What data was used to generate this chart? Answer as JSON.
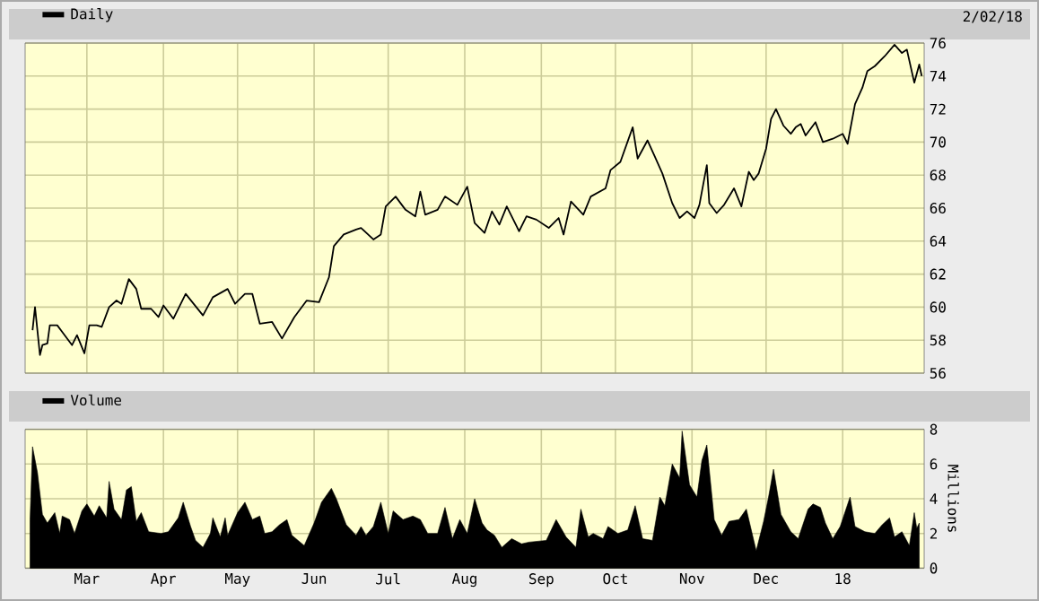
{
  "chart_data": [
    {
      "type": "line",
      "xlim": [
        "2017-02-04",
        "2018-02-03"
      ],
      "ylim": [
        56,
        76
      ],
      "xticks": [
        {
          "value": "2017-03-01",
          "label": null
        },
        {
          "value": "2017-04-01",
          "label": null
        },
        {
          "value": "2017-05-01",
          "label": null
        },
        {
          "value": "2017-06-01",
          "label": null
        },
        {
          "value": "2017-07-01",
          "label": null
        },
        {
          "value": "2017-08-01",
          "label": null
        },
        {
          "value": "2017-09-01",
          "label": null
        },
        {
          "value": "2017-10-01",
          "label": null
        },
        {
          "value": "2017-11-01",
          "label": null
        },
        {
          "value": "2017-12-01",
          "label": null
        },
        {
          "value": "2018-01-01",
          "label": null
        }
      ],
      "yticks": [
        56,
        58,
        60,
        62,
        64,
        66,
        68,
        70,
        72,
        74,
        76
      ],
      "grid": true,
      "legend": "top left",
      "tick_labels": "y",
      "annotations": [
        "2/02/18"
      ],
      "series": [
        {
          "name": "Daily",
          "color": "#000000",
          "x": [
            "2017-02-07",
            "2017-02-08",
            "2017-02-10",
            "2017-02-11",
            "2017-02-13",
            "2017-02-14",
            "2017-02-17",
            "2017-02-19",
            "2017-02-23",
            "2017-02-25",
            "2017-02-28",
            "2017-03-02",
            "2017-03-05",
            "2017-03-07",
            "2017-03-10",
            "2017-03-13",
            "2017-03-15",
            "2017-03-18",
            "2017-03-21",
            "2017-03-23",
            "2017-03-27",
            "2017-03-30",
            "2017-04-01",
            "2017-04-05",
            "2017-04-10",
            "2017-04-17",
            "2017-04-21",
            "2017-04-27",
            "2017-04-30",
            "2017-05-04",
            "2017-05-07",
            "2017-05-10",
            "2017-05-15",
            "2017-05-19",
            "2017-05-24",
            "2017-05-29",
            "2017-06-03",
            "2017-06-07",
            "2017-06-09",
            "2017-06-13",
            "2017-06-18",
            "2017-06-20",
            "2017-06-25",
            "2017-06-28",
            "2017-06-30",
            "2017-07-04",
            "2017-07-08",
            "2017-07-12",
            "2017-07-14",
            "2017-07-16",
            "2017-07-21",
            "2017-07-24",
            "2017-07-29",
            "2017-08-02",
            "2017-08-05",
            "2017-08-09",
            "2017-08-12",
            "2017-08-15",
            "2017-08-18",
            "2017-08-23",
            "2017-08-26",
            "2017-08-30",
            "2017-09-04",
            "2017-09-08",
            "2017-09-10",
            "2017-09-13",
            "2017-09-18",
            "2017-09-21",
            "2017-09-27",
            "2017-09-29",
            "2017-10-03",
            "2017-10-08",
            "2017-10-10",
            "2017-10-14",
            "2017-10-17",
            "2017-10-20",
            "2017-10-24",
            "2017-10-27",
            "2017-10-30",
            "2017-11-02",
            "2017-11-04",
            "2017-11-07",
            "2017-11-08",
            "2017-11-11",
            "2017-11-14",
            "2017-11-18",
            "2017-11-21",
            "2017-11-24",
            "2017-11-26",
            "2017-11-28",
            "2017-12-01",
            "2017-12-03",
            "2017-12-05",
            "2017-12-08",
            "2017-12-11",
            "2017-12-13",
            "2017-12-15",
            "2017-12-17",
            "2017-12-21",
            "2017-12-24",
            "2017-12-28",
            "2018-01-01",
            "2018-01-03",
            "2018-01-06",
            "2018-01-09",
            "2018-01-11",
            "2018-01-14",
            "2018-01-18",
            "2018-01-22",
            "2018-01-25",
            "2018-01-27",
            "2018-01-30",
            "2018-02-01",
            "2018-02-02"
          ],
          "values": [
            58.6,
            60.0,
            57.1,
            57.7,
            57.8,
            58.9,
            58.9,
            58.5,
            57.7,
            58.3,
            57.2,
            58.9,
            58.9,
            58.8,
            60.0,
            60.4,
            60.2,
            61.7,
            61.1,
            59.9,
            59.9,
            59.4,
            60.1,
            59.3,
            60.8,
            59.5,
            60.6,
            61.1,
            60.2,
            60.8,
            60.8,
            59.0,
            59.1,
            58.1,
            59.4,
            60.4,
            60.3,
            61.8,
            63.7,
            64.4,
            64.7,
            64.8,
            64.1,
            64.4,
            66.1,
            66.7,
            65.9,
            65.5,
            67.0,
            65.6,
            65.9,
            66.7,
            66.2,
            67.3,
            65.1,
            64.5,
            65.8,
            65.0,
            66.1,
            64.6,
            65.5,
            65.3,
            64.8,
            65.4,
            64.4,
            66.4,
            65.6,
            66.7,
            67.2,
            68.3,
            68.8,
            70.9,
            69.0,
            70.1,
            69.1,
            68.1,
            66.3,
            65.4,
            65.8,
            65.4,
            66.2,
            68.6,
            66.3,
            65.7,
            66.2,
            67.2,
            66.1,
            68.2,
            67.7,
            68.1,
            69.6,
            71.4,
            72.0,
            71.0,
            70.5,
            70.9,
            71.1,
            70.4,
            71.2,
            70.0,
            70.2,
            70.5,
            69.9,
            72.3,
            73.3,
            74.3,
            74.6,
            75.2,
            75.9,
            75.4,
            75.6,
            73.6,
            74.7,
            74.0
          ]
        }
      ]
    },
    {
      "type": "area",
      "xlim": [
        "2017-02-04",
        "2018-02-03"
      ],
      "ylim": [
        0,
        8
      ],
      "xticks": [
        {
          "value": "2017-03-01",
          "label": "Mar"
        },
        {
          "value": "2017-04-01",
          "label": "Apr"
        },
        {
          "value": "2017-05-01",
          "label": "May"
        },
        {
          "value": "2017-06-01",
          "label": "Jun"
        },
        {
          "value": "2017-07-01",
          "label": "Jul"
        },
        {
          "value": "2017-08-01",
          "label": "Aug"
        },
        {
          "value": "2017-09-01",
          "label": "Sep"
        },
        {
          "value": "2017-10-01",
          "label": "Oct"
        },
        {
          "value": "2017-11-01",
          "label": "Nov"
        },
        {
          "value": "2017-12-01",
          "label": "Dec"
        },
        {
          "value": "2018-01-01",
          "label": "18"
        }
      ],
      "yticks": [
        0,
        2,
        4,
        6,
        8
      ],
      "ylabel": "Millions",
      "grid": true,
      "legend": "top left",
      "series": [
        {
          "name": "Volume",
          "color": "#000000",
          "x": [
            "2017-02-06",
            "2017-02-07",
            "2017-02-09",
            "2017-02-11",
            "2017-02-13",
            "2017-02-16",
            "2017-02-18",
            "2017-02-19",
            "2017-02-22",
            "2017-02-24",
            "2017-02-27",
            "2017-03-01",
            "2017-03-04",
            "2017-03-06",
            "2017-03-09",
            "2017-03-10",
            "2017-03-12",
            "2017-03-15",
            "2017-03-17",
            "2017-03-19",
            "2017-03-21",
            "2017-03-23",
            "2017-03-26",
            "2017-03-31",
            "2017-04-03",
            "2017-04-07",
            "2017-04-09",
            "2017-04-12",
            "2017-04-14",
            "2017-04-17",
            "2017-04-20",
            "2017-04-21",
            "2017-04-24",
            "2017-04-26",
            "2017-04-27",
            "2017-05-01",
            "2017-05-04",
            "2017-05-07",
            "2017-05-10",
            "2017-05-12",
            "2017-05-15",
            "2017-05-18",
            "2017-05-21",
            "2017-05-23",
            "2017-05-28",
            "2017-06-01",
            "2017-06-04",
            "2017-06-08",
            "2017-06-10",
            "2017-06-14",
            "2017-06-18",
            "2017-06-20",
            "2017-06-22",
            "2017-06-25",
            "2017-06-28",
            "2017-07-01",
            "2017-07-03",
            "2017-07-07",
            "2017-07-11",
            "2017-07-14",
            "2017-07-17",
            "2017-07-21",
            "2017-07-24",
            "2017-07-27",
            "2017-07-30",
            "2017-08-02",
            "2017-08-05",
            "2017-08-08",
            "2017-08-10",
            "2017-08-13",
            "2017-08-16",
            "2017-08-20",
            "2017-08-24",
            "2017-08-27",
            "2017-09-03",
            "2017-09-07",
            "2017-09-11",
            "2017-09-15",
            "2017-09-17",
            "2017-09-20",
            "2017-09-22",
            "2017-09-26",
            "2017-09-28",
            "2017-10-02",
            "2017-10-06",
            "2017-10-09",
            "2017-10-12",
            "2017-10-16",
            "2017-10-19",
            "2017-10-21",
            "2017-10-24",
            "2017-10-27",
            "2017-10-28",
            "2017-10-31",
            "2017-11-03",
            "2017-11-05",
            "2017-11-07",
            "2017-11-10",
            "2017-11-13",
            "2017-11-16",
            "2017-11-20",
            "2017-11-23",
            "2017-11-27",
            "2017-11-30",
            "2017-12-02",
            "2017-12-04",
            "2017-12-07",
            "2017-12-11",
            "2017-12-14",
            "2017-12-18",
            "2017-12-20",
            "2017-12-23",
            "2017-12-25",
            "2017-12-28",
            "2017-12-31",
            "2018-01-04",
            "2018-01-06",
            "2018-01-10",
            "2018-01-14",
            "2018-01-17",
            "2018-01-20",
            "2018-01-22",
            "2018-01-25",
            "2018-01-28",
            "2018-01-30",
            "2018-01-31",
            "2018-02-01"
          ],
          "values": [
            2.8,
            7.0,
            5.5,
            3.1,
            2.6,
            3.2,
            2.0,
            3.0,
            2.8,
            2.0,
            3.3,
            3.7,
            3.0,
            3.6,
            2.9,
            5.0,
            3.4,
            2.8,
            4.5,
            4.7,
            2.7,
            3.2,
            2.1,
            2.0,
            2.1,
            2.9,
            3.8,
            2.4,
            1.6,
            1.2,
            2.0,
            2.9,
            1.8,
            2.9,
            1.9,
            3.2,
            3.8,
            2.8,
            3.0,
            2.0,
            2.1,
            2.5,
            2.8,
            1.9,
            1.3,
            2.6,
            3.8,
            4.6,
            4.0,
            2.5,
            1.9,
            2.4,
            1.9,
            2.4,
            3.8,
            2.0,
            3.3,
            2.8,
            3.0,
            2.8,
            2.0,
            2.0,
            3.5,
            1.7,
            2.8,
            2.0,
            4.0,
            2.6,
            2.2,
            1.9,
            1.2,
            1.7,
            1.4,
            1.5,
            1.6,
            2.8,
            1.8,
            1.2,
            3.4,
            1.8,
            2.0,
            1.7,
            2.4,
            2.0,
            2.2,
            3.6,
            1.7,
            1.6,
            4.1,
            3.6,
            6.0,
            5.2,
            7.9,
            4.8,
            4.1,
            6.2,
            7.1,
            2.8,
            1.9,
            2.7,
            2.8,
            3.4,
            1.0,
            2.7,
            4.1,
            5.7,
            3.1,
            2.1,
            1.7,
            3.4,
            3.7,
            3.5,
            2.6,
            1.7,
            2.4,
            4.1,
            2.4,
            2.1,
            2.0,
            2.5,
            2.9,
            1.8,
            2.1,
            1.3,
            3.2,
            2.3,
            2.6
          ]
        }
      ]
    }
  ]
}
